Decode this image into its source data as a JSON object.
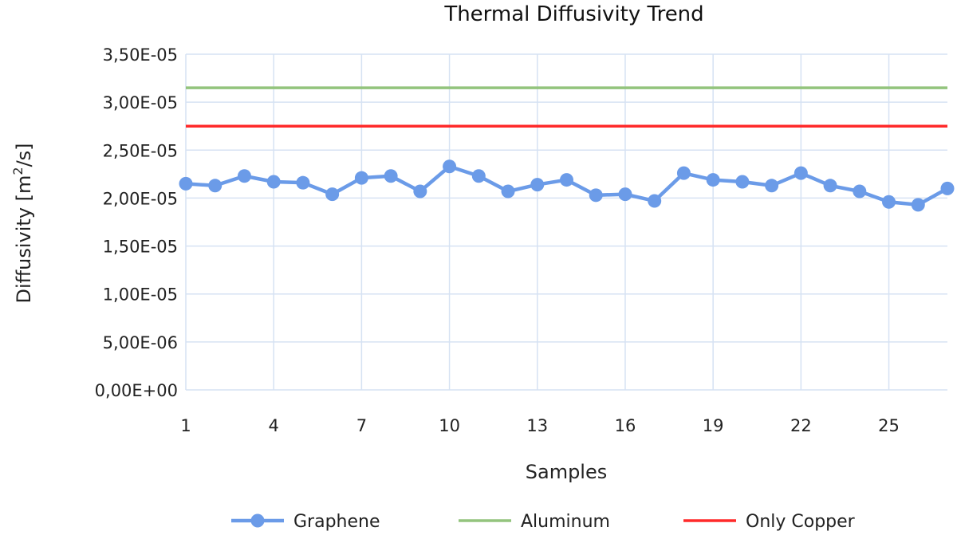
{
  "chart_data": {
    "type": "line",
    "title": "Thermal Diffusivity Trend",
    "xlabel": "Samples",
    "ylabel": "Diffusivity [m²/s]",
    "ylabel_parts": {
      "before": "Diffusivity [m",
      "sup": "2",
      "after": "/s]"
    },
    "x": [
      1,
      2,
      3,
      4,
      5,
      6,
      7,
      8,
      9,
      10,
      11,
      12,
      13,
      14,
      15,
      16,
      17,
      18,
      19,
      20,
      21,
      22,
      23,
      24,
      25,
      26,
      27
    ],
    "x_ticks": [
      1,
      4,
      7,
      10,
      13,
      16,
      19,
      22,
      25
    ],
    "x_tick_labels": [
      "1",
      "4",
      "7",
      "10",
      "13",
      "16",
      "19",
      "22",
      "25"
    ],
    "xlim": [
      1,
      27
    ],
    "ylim": [
      0,
      3.5e-05
    ],
    "y_ticks": [
      0,
      5e-06,
      1e-05,
      1.5e-05,
      2e-05,
      2.5e-05,
      3e-05,
      3.5e-05
    ],
    "y_tick_labels": [
      "0,00E+00",
      "5,00E-06",
      "1,00E-05",
      "1,50E-05",
      "2,00E-05",
      "2,50E-05",
      "3,00E-05",
      "3,50E-05"
    ],
    "grid": true,
    "legend_position": "bottom",
    "series": [
      {
        "name": "Graphene",
        "color": "#6b9be8",
        "marker": "circle",
        "values": [
          2.15e-05,
          2.13e-05,
          2.23e-05,
          2.17e-05,
          2.16e-05,
          2.04e-05,
          2.21e-05,
          2.23e-05,
          2.07e-05,
          2.33e-05,
          2.23e-05,
          2.07e-05,
          2.14e-05,
          2.19e-05,
          2.03e-05,
          2.04e-05,
          1.97e-05,
          2.26e-05,
          2.19e-05,
          2.17e-05,
          2.13e-05,
          2.26e-05,
          2.13e-05,
          2.07e-05,
          1.96e-05,
          1.93e-05,
          2.1e-05
        ]
      },
      {
        "name": "Aluminum",
        "color": "#93c47d",
        "marker": "none",
        "values": [
          3.15e-05,
          3.15e-05,
          3.15e-05,
          3.15e-05,
          3.15e-05,
          3.15e-05,
          3.15e-05,
          3.15e-05,
          3.15e-05,
          3.15e-05,
          3.15e-05,
          3.15e-05,
          3.15e-05,
          3.15e-05,
          3.15e-05,
          3.15e-05,
          3.15e-05,
          3.15e-05,
          3.15e-05,
          3.15e-05,
          3.15e-05,
          3.15e-05,
          3.15e-05,
          3.15e-05,
          3.15e-05,
          3.15e-05,
          3.15e-05
        ]
      },
      {
        "name": "Only Copper",
        "color": "#ff2a2a",
        "marker": "none",
        "values": [
          2.75e-05,
          2.75e-05,
          2.75e-05,
          2.75e-05,
          2.75e-05,
          2.75e-05,
          2.75e-05,
          2.75e-05,
          2.75e-05,
          2.75e-05,
          2.75e-05,
          2.75e-05,
          2.75e-05,
          2.75e-05,
          2.75e-05,
          2.75e-05,
          2.75e-05,
          2.75e-05,
          2.75e-05,
          2.75e-05,
          2.75e-05,
          2.75e-05,
          2.75e-05,
          2.75e-05,
          2.75e-05,
          2.75e-05,
          2.75e-05
        ]
      }
    ]
  }
}
